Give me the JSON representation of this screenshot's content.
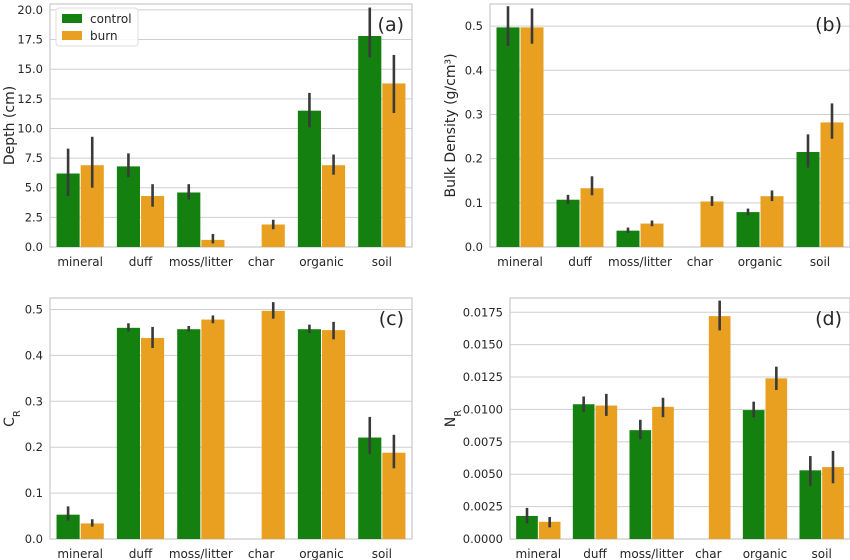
{
  "colors": {
    "control": "#13800f",
    "burn": "#e9a021",
    "errorbar": "#3a3a3a",
    "grid": "#cfcfcf",
    "spine": "#c8c8c8"
  },
  "chart_data": [
    {
      "type": "bar",
      "panel_label": "(a)",
      "ylabel": "Depth (cm)",
      "categories": [
        "mineral",
        "duff",
        "moss/litter",
        "char",
        "organic",
        "soil"
      ],
      "ylim": [
        0,
        20.5
      ],
      "yticks": [
        0.0,
        2.5,
        5.0,
        7.5,
        10.0,
        12.5,
        15.0,
        17.5,
        20.0
      ],
      "ytick_labels": [
        "0.0",
        "2.5",
        "5.0",
        "7.5",
        "10.0",
        "12.5",
        "15.0",
        "17.5",
        "20.0"
      ],
      "grid": true,
      "legend": {
        "position": "top-left",
        "entries": [
          "control",
          "burn"
        ]
      },
      "series": [
        {
          "name": "control",
          "values": [
            6.2,
            6.8,
            4.6,
            null,
            11.5,
            17.8
          ],
          "err_low": [
            4.3,
            5.9,
            4.0,
            null,
            10.1,
            16.0
          ],
          "err_high": [
            8.3,
            7.9,
            5.3,
            null,
            13.0,
            20.2
          ]
        },
        {
          "name": "burn",
          "values": [
            6.9,
            4.3,
            0.6,
            1.9,
            6.9,
            13.8
          ],
          "err_low": [
            5.0,
            3.4,
            0.3,
            1.5,
            6.1,
            11.3
          ],
          "err_high": [
            9.3,
            5.3,
            1.1,
            2.3,
            7.8,
            16.2
          ]
        }
      ]
    },
    {
      "type": "bar",
      "panel_label": "(b)",
      "ylabel": "Bulk Density (g/cm³)",
      "categories": [
        "mineral",
        "duff",
        "moss/litter",
        "char",
        "organic",
        "soil"
      ],
      "ylim": [
        0,
        0.55
      ],
      "yticks": [
        0.0,
        0.1,
        0.2,
        0.3,
        0.4,
        0.5
      ],
      "ytick_labels": [
        "0.0",
        "0.1",
        "0.2",
        "0.3",
        "0.4",
        "0.5"
      ],
      "grid": true,
      "series": [
        {
          "name": "control",
          "values": [
            0.497,
            0.107,
            0.037,
            null,
            0.079,
            0.215
          ],
          "err_low": [
            0.455,
            0.097,
            0.032,
            null,
            0.072,
            0.18
          ],
          "err_high": [
            0.545,
            0.118,
            0.044,
            null,
            0.087,
            0.255
          ]
        },
        {
          "name": "burn",
          "values": [
            0.497,
            0.133,
            0.053,
            0.103,
            0.115,
            0.282
          ],
          "err_low": [
            0.46,
            0.117,
            0.047,
            0.093,
            0.104,
            0.245
          ],
          "err_high": [
            0.54,
            0.16,
            0.06,
            0.115,
            0.128,
            0.325
          ]
        }
      ]
    },
    {
      "type": "bar",
      "panel_label": "(c)",
      "ylabel": "C",
      "ylabel_subscript": "R",
      "categories": [
        "mineral",
        "duff",
        "moss/litter",
        "char",
        "organic",
        "soil"
      ],
      "ylim": [
        0,
        0.525
      ],
      "yticks": [
        0.0,
        0.1,
        0.2,
        0.3,
        0.4,
        0.5
      ],
      "ytick_labels": [
        "0.0",
        "0.1",
        "0.2",
        "0.3",
        "0.4",
        "0.5"
      ],
      "grid": true,
      "series": [
        {
          "name": "control",
          "values": [
            0.053,
            0.46,
            0.457,
            null,
            0.457,
            0.221
          ],
          "err_low": [
            0.04,
            0.452,
            0.452,
            null,
            0.448,
            0.185
          ],
          "err_high": [
            0.071,
            0.47,
            0.464,
            null,
            0.467,
            0.266
          ]
        },
        {
          "name": "burn",
          "values": [
            0.034,
            0.438,
            0.478,
            0.497,
            0.455,
            0.188
          ],
          "err_low": [
            0.027,
            0.416,
            0.47,
            0.48,
            0.435,
            0.154
          ],
          "err_high": [
            0.043,
            0.462,
            0.487,
            0.516,
            0.473,
            0.227
          ]
        }
      ]
    },
    {
      "type": "bar",
      "panel_label": "(d)",
      "ylabel": "N",
      "ylabel_subscript": "R",
      "categories": [
        "mineral",
        "duff",
        "moss/litter",
        "char",
        "organic",
        "soil"
      ],
      "ylim": [
        0,
        0.0186
      ],
      "yticks": [
        0.0,
        0.0025,
        0.005,
        0.0075,
        0.01,
        0.0125,
        0.015,
        0.0175
      ],
      "ytick_labels": [
        "0.0000",
        "0.0025",
        "0.0050",
        "0.0075",
        "0.0100",
        "0.0125",
        "0.0150",
        "0.0175"
      ],
      "grid": true,
      "series": [
        {
          "name": "control",
          "values": [
            0.00178,
            0.0104,
            0.0084,
            null,
            0.00995,
            0.0053
          ],
          "err_low": [
            0.0012,
            0.0098,
            0.0077,
            null,
            0.0094,
            0.0041
          ],
          "err_high": [
            0.0024,
            0.011,
            0.0092,
            null,
            0.0106,
            0.0064
          ]
        },
        {
          "name": "burn",
          "values": [
            0.00133,
            0.0103,
            0.0102,
            0.0172,
            0.0124,
            0.00555
          ],
          "err_low": [
            0.0009,
            0.0095,
            0.0094,
            0.0161,
            0.0115,
            0.0043
          ],
          "err_high": [
            0.0017,
            0.0112,
            0.0109,
            0.0184,
            0.0133,
            0.0068
          ]
        }
      ]
    }
  ]
}
